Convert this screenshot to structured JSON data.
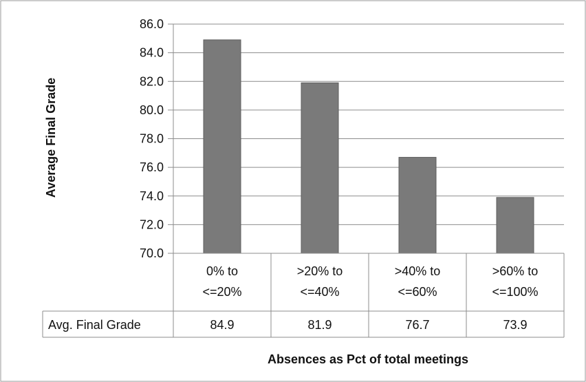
{
  "chart_data": {
    "type": "bar",
    "categories": [
      [
        "0% to",
        "<=20%"
      ],
      [
        ">20% to",
        "<=40%"
      ],
      [
        ">40% to",
        "<=60%"
      ],
      [
        ">60% to",
        "<=100%"
      ]
    ],
    "values": [
      84.9,
      81.9,
      76.7,
      73.9
    ],
    "series": [
      {
        "name": "Avg. Final Grade",
        "values": [
          84.9,
          81.9,
          76.7,
          73.9
        ]
      }
    ],
    "table": {
      "row_label": "Avg. Final Grade",
      "cells": [
        "84.9",
        "81.9",
        "76.7",
        "73.9"
      ]
    },
    "xlabel": "Absences as Pct of total meetings",
    "ylabel": "Average Final Grade",
    "ylim": [
      70,
      86
    ],
    "yticks": [
      "70.0",
      "72.0",
      "74.0",
      "76.0",
      "78.0",
      "80.0",
      "82.0",
      "84.0",
      "86.0"
    ],
    "grid": true,
    "legend": "none",
    "bar_color": "#7a7a7a",
    "grid_color": "#8c8c8c"
  }
}
